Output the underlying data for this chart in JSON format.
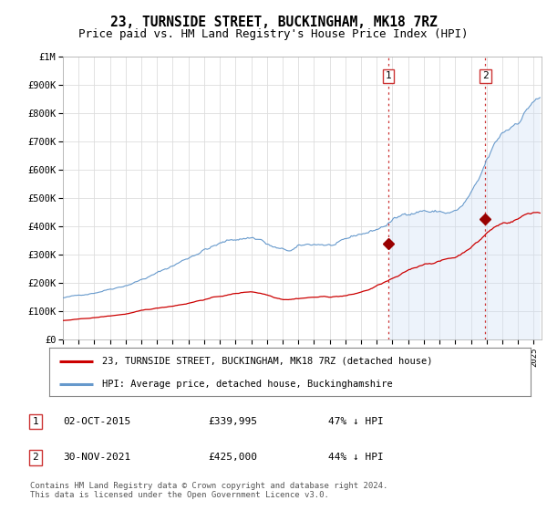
{
  "title": "23, TURNSIDE STREET, BUCKINGHAM, MK18 7RZ",
  "subtitle": "Price paid vs. HM Land Registry's House Price Index (HPI)",
  "title_fontsize": 10.5,
  "subtitle_fontsize": 9,
  "background_color": "#ffffff",
  "plot_bg_color": "#ffffff",
  "grid_color": "#dddddd",
  "hpi_shading_color": "#ccdff5",
  "ylim": [
    0,
    1000000
  ],
  "yticks": [
    0,
    100000,
    200000,
    300000,
    400000,
    500000,
    600000,
    700000,
    800000,
    900000,
    1000000
  ],
  "ylabel_texts": [
    "£0",
    "£100K",
    "£200K",
    "£300K",
    "£400K",
    "£500K",
    "£600K",
    "£700K",
    "£800K",
    "£900K",
    "£1M"
  ],
  "xlim_start": 1995.0,
  "xlim_end": 2025.5,
  "red_line_color": "#cc0000",
  "blue_line_color": "#6699cc",
  "marker_color": "#990000",
  "marker1_x": 2015.75,
  "marker1_y": 339995,
  "marker2_x": 2021.92,
  "marker2_y": 425000,
  "vline_color": "#cc3333",
  "vline_style": ":",
  "legend_label_red": "23, TURNSIDE STREET, BUCKINGHAM, MK18 7RZ (detached house)",
  "legend_label_blue": "HPI: Average price, detached house, Buckinghamshire",
  "annotation1_num": "1",
  "annotation1_date": "02-OCT-2015",
  "annotation1_price": "£339,995",
  "annotation1_hpi": "47% ↓ HPI",
  "annotation2_num": "2",
  "annotation2_date": "30-NOV-2021",
  "annotation2_price": "£425,000",
  "annotation2_hpi": "44% ↓ HPI",
  "footer": "Contains HM Land Registry data © Crown copyright and database right 2024.\nThis data is licensed under the Open Government Licence v3.0."
}
